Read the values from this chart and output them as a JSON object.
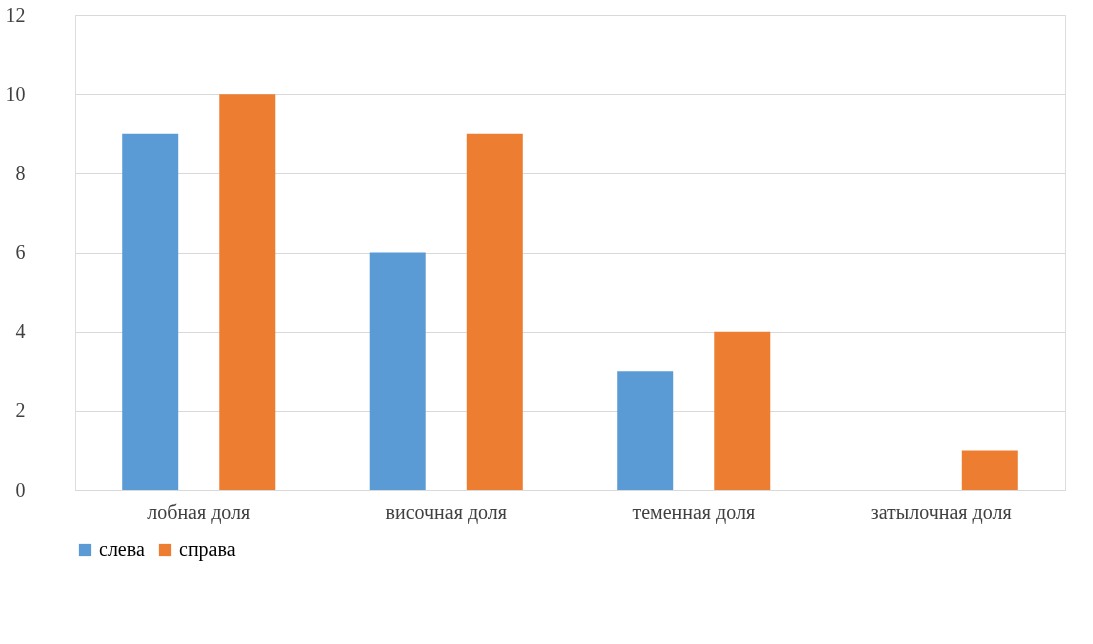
{
  "chart_data": {
    "type": "bar",
    "categories": [
      "лобная доля",
      "височная доля",
      "теменная доля",
      "затылочная доля"
    ],
    "series": [
      {
        "name": "слева",
        "color": "#5b9bd5",
        "values": [
          9,
          6,
          3,
          0
        ]
      },
      {
        "name": "справа",
        "color": "#ed7d31",
        "values": [
          10,
          9,
          4,
          1
        ]
      }
    ],
    "ylim": [
      0,
      12
    ],
    "yticks": [
      0,
      2,
      4,
      6,
      8,
      10,
      12
    ],
    "grid": "y",
    "legend": "bottom"
  }
}
